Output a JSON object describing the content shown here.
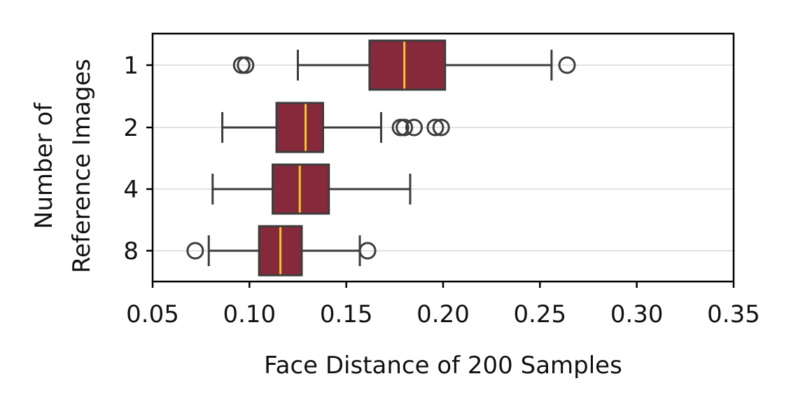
{
  "chart_data": {
    "type": "boxplot",
    "orientation": "horizontal",
    "title": "",
    "xlabel": "Face Distance of 200 Samples",
    "ylabel_lines": [
      "Number of",
      "Reference Images"
    ],
    "xlim": [
      0.05,
      0.35
    ],
    "xticks": [
      "0.05",
      "0.10",
      "0.15",
      "0.20",
      "0.25",
      "0.30",
      "0.35"
    ],
    "xtick_values": [
      0.05,
      0.1,
      0.15,
      0.2,
      0.25,
      0.3,
      0.35
    ],
    "categories": [
      "1",
      "2",
      "4",
      "8"
    ],
    "grid": "horizontal",
    "colors": {
      "box_fill": "#862a3b",
      "box_edge": "#3c3c3c",
      "median": "#f5c531",
      "grid": "#d9d9d9",
      "axis": "#000000"
    },
    "boxes": [
      {
        "category": "1",
        "whisker_low": 0.125,
        "q1": 0.162,
        "median": 0.18,
        "q3": 0.201,
        "whisker_high": 0.256,
        "outliers": [
          0.096,
          0.098,
          0.264
        ]
      },
      {
        "category": "2",
        "whisker_low": 0.086,
        "q1": 0.114,
        "median": 0.129,
        "q3": 0.138,
        "whisker_high": 0.168,
        "outliers": [
          0.178,
          0.18,
          0.185,
          0.196,
          0.199
        ]
      },
      {
        "category": "4",
        "whisker_low": 0.081,
        "q1": 0.112,
        "median": 0.126,
        "q3": 0.141,
        "whisker_high": 0.183,
        "outliers": []
      },
      {
        "category": "8",
        "whisker_low": 0.079,
        "q1": 0.105,
        "median": 0.116,
        "q3": 0.127,
        "whisker_high": 0.157,
        "outliers": [
          0.072,
          0.161
        ]
      }
    ]
  }
}
